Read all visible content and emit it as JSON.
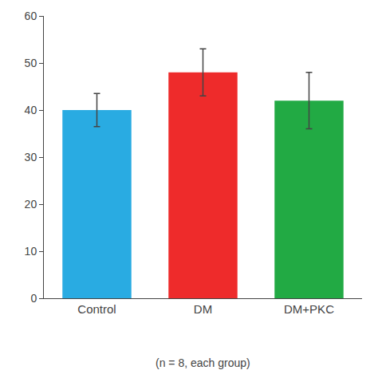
{
  "chart_data": {
    "type": "bar",
    "categories": [
      "Control",
      "DM",
      "DM+PKC"
    ],
    "values": [
      40,
      48,
      42
    ],
    "errors": [
      3.5,
      5.0,
      6.0
    ],
    "colors": [
      "#29ABE2",
      "#EE2B2B",
      "#22AA44"
    ],
    "ylim": [
      0,
      60
    ],
    "yticks": [
      0,
      10,
      20,
      30,
      40,
      50,
      60
    ],
    "grid": false,
    "annotation": "(n = 8, each group)"
  }
}
